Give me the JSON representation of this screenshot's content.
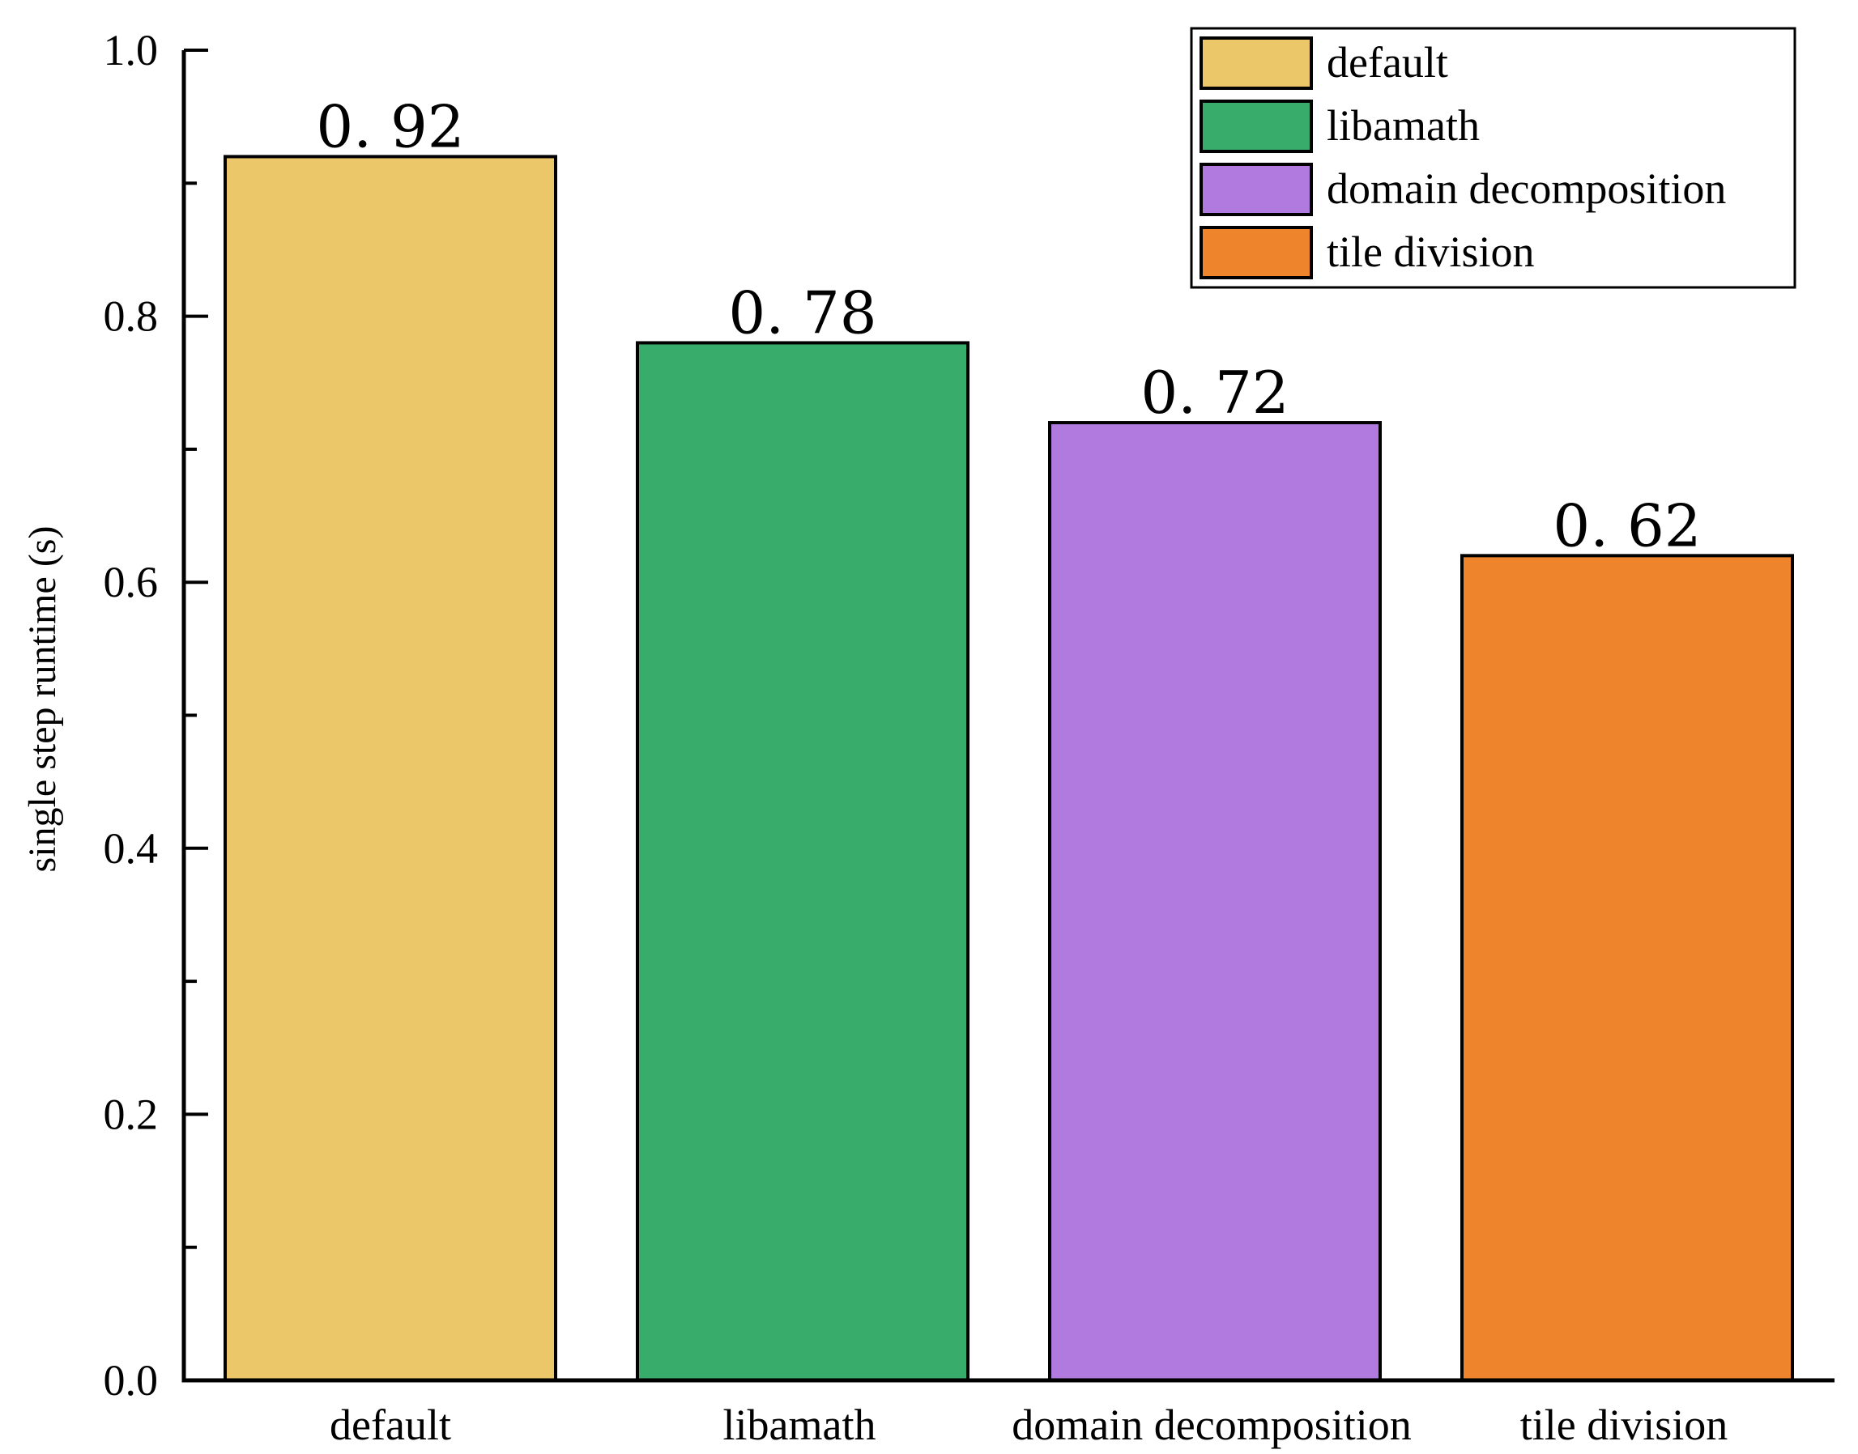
{
  "chart_data": {
    "type": "bar",
    "title": "",
    "xlabel": "",
    "ylabel": "single step runtime (s)",
    "ylim": [
      0.0,
      1.0
    ],
    "yticks": [
      "0.0",
      "0.2",
      "0.4",
      "0.6",
      "0.8",
      "1.0"
    ],
    "categories": [
      "default",
      "libamath",
      "domain decomposition",
      "tile division"
    ],
    "values": [
      0.92,
      0.78,
      0.72,
      0.62
    ],
    "value_labels": [
      "0. 92",
      "0. 78",
      "0. 72",
      "0. 62"
    ],
    "colors": [
      "#ECC76A",
      "#38AD6B",
      "#B07ADE",
      "#EE852C"
    ],
    "legend": {
      "placement": "top-right",
      "entries": [
        "default",
        "libamath",
        "domain decomposition",
        "tile division"
      ]
    },
    "grid": false
  }
}
